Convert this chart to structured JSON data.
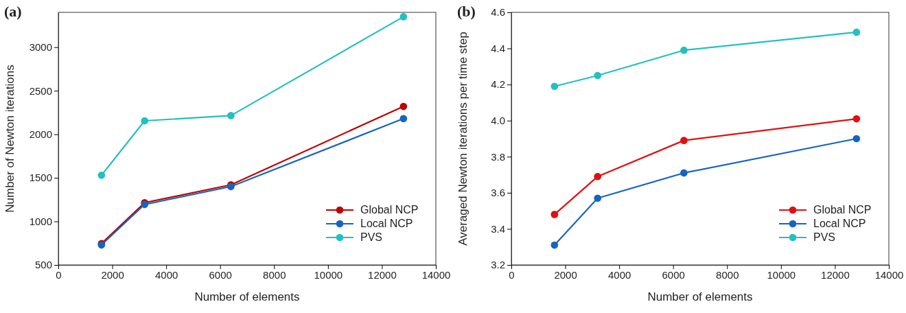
{
  "chart_data": [
    {
      "type": "line",
      "title": "(a)",
      "xlabel": "Number of elements",
      "ylabel": "Number of Newton iterations",
      "x": [
        1600,
        3200,
        6400,
        12800
      ],
      "xlim": [
        0,
        14000
      ],
      "xticks": [
        0,
        2000,
        4000,
        6000,
        8000,
        10000,
        12000,
        14000
      ],
      "ylim": [
        500,
        3400
      ],
      "yticks": [
        500,
        1000,
        1500,
        2000,
        2500,
        3000
      ],
      "marker": "circle",
      "legend": "bottom right",
      "series": [
        {
          "name": "Global NCP",
          "color": "#c00000",
          "values": [
            745,
            1215,
            1420,
            2320
          ]
        },
        {
          "name": "Local NCP",
          "color": "#1565c0",
          "values": [
            730,
            1195,
            1400,
            2180
          ]
        },
        {
          "name": "PVS",
          "color": "#22c0c0",
          "values": [
            1530,
            2155,
            2215,
            3350
          ]
        }
      ]
    },
    {
      "type": "line",
      "title": "(b)",
      "xlabel": "Number of elements",
      "ylabel": "Averaged Newton iterations per time step",
      "x": [
        1600,
        3200,
        6400,
        12800
      ],
      "xlim": [
        0,
        14000
      ],
      "xticks": [
        0,
        2000,
        4000,
        6000,
        8000,
        10000,
        12000,
        14000
      ],
      "ylim": [
        3.2,
        4.6
      ],
      "yticks": [
        {
          "value": 3.2,
          "label": "3.2"
        },
        {
          "value": 3.4,
          "label": "3.4"
        },
        {
          "value": 3.6,
          "label": "3.6"
        },
        {
          "value": 3.8,
          "label": "3.8"
        },
        {
          "value": 4.0,
          "label": "4.0"
        },
        {
          "value": 4.2,
          "label": "4.2"
        },
        {
          "value": 4.4,
          "label": "4.4"
        },
        {
          "value": 4.6,
          "label": "4.6"
        }
      ],
      "marker": "circle",
      "legend": "bottom right",
      "series": [
        {
          "name": "Global NCP",
          "color": "#e01010",
          "values": [
            3.48,
            3.69,
            3.89,
            4.01
          ]
        },
        {
          "name": "Local NCP",
          "color": "#1565c0",
          "values": [
            3.31,
            3.57,
            3.71,
            3.9
          ]
        },
        {
          "name": "PVS",
          "color": "#22c0c0",
          "values": [
            4.19,
            4.25,
            4.39,
            4.49
          ]
        }
      ]
    }
  ]
}
